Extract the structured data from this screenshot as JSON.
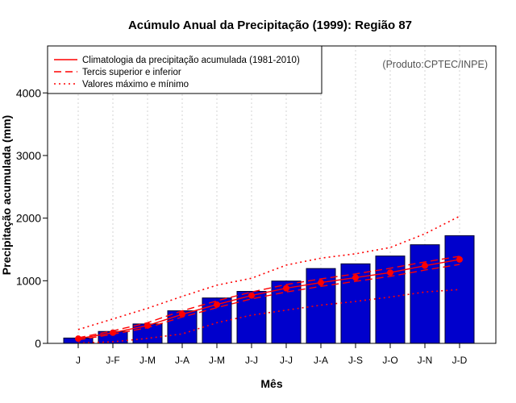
{
  "chart_data": {
    "type": "bar",
    "title": "Acúmulo Anual da Precipitação (1999): Região 87",
    "xlabel": "Mês",
    "ylabel": "Precipitação acumulada (mm)",
    "credit": "(Produto:CPTEC/INPE)",
    "ylim": [
      0,
      4750
    ],
    "yticks": [
      0,
      1000,
      2000,
      3000,
      4000
    ],
    "categories": [
      "J",
      "J-F",
      "J-M",
      "J-A",
      "J-M",
      "J-J",
      "J-J",
      "J-A",
      "J-S",
      "J-O",
      "J-N",
      "J-D"
    ],
    "values": [
      85,
      190,
      310,
      520,
      725,
      830,
      995,
      1195,
      1270,
      1395,
      1575,
      1720
    ],
    "series": [
      {
        "name": "Climatologia da precipitação acumulada (1981-2010)",
        "style": "solid",
        "markers": true,
        "values": [
          75,
          170,
          285,
          465,
          620,
          765,
          880,
          970,
          1050,
          1130,
          1240,
          1340
        ]
      },
      {
        "name": "Tercil superior",
        "style": "dashed",
        "values": [
          90,
          200,
          330,
          520,
          680,
          820,
          940,
          1030,
          1110,
          1200,
          1300,
          1390
        ]
      },
      {
        "name": "Tercil inferior",
        "style": "dashed",
        "values": [
          55,
          145,
          250,
          420,
          570,
          710,
          820,
          910,
          990,
          1070,
          1170,
          1260
        ]
      },
      {
        "name": "Valor máximo",
        "style": "dotted",
        "values": [
          220,
          390,
          560,
          750,
          930,
          1040,
          1250,
          1360,
          1430,
          1530,
          1750,
          2030
        ]
      },
      {
        "name": "Valor mínimo",
        "style": "dotted",
        "values": [
          5,
          25,
          80,
          150,
          330,
          450,
          530,
          610,
          670,
          740,
          820,
          860
        ]
      }
    ],
    "legend": {
      "position": "top-left",
      "entries": [
        {
          "label": "Climatologia da precipitação acumulada (1981-2010)",
          "style": "solid"
        },
        {
          "label": "Tercis superior e inferior",
          "style": "dashed"
        },
        {
          "label": "Valores máximo e mínimo",
          "style": "dotted"
        }
      ]
    },
    "colors": {
      "bar": "#0000cc",
      "bar_stroke": "#000033",
      "line": "#ff0000",
      "grid": "#d3d3d3"
    }
  }
}
